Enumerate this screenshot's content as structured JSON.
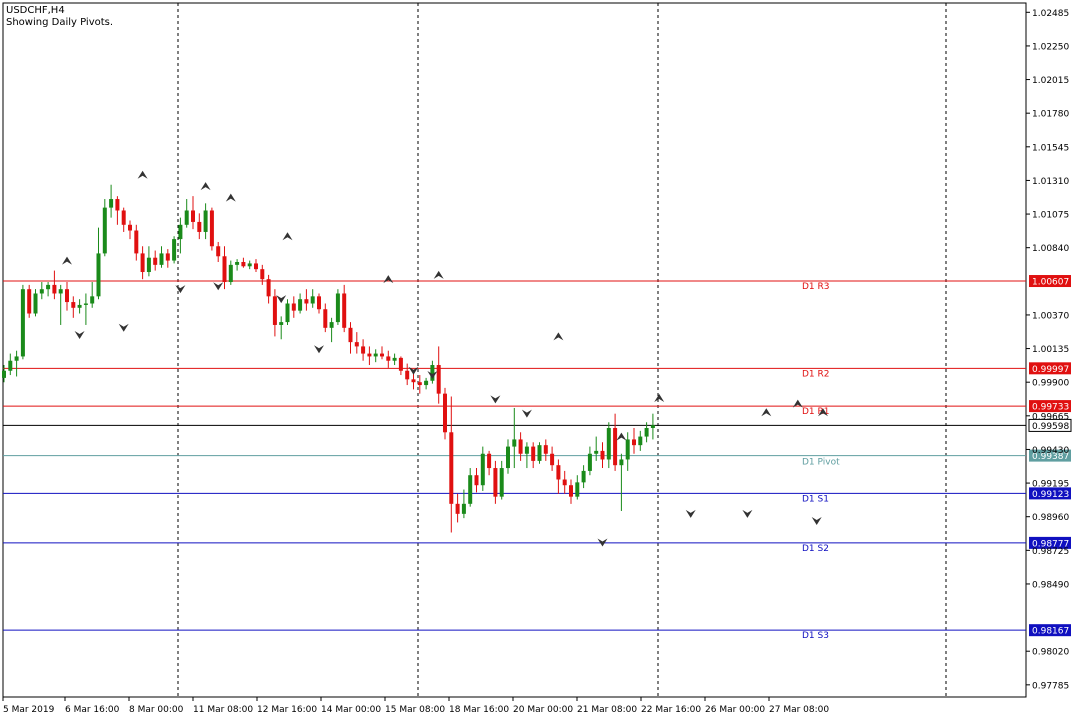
{
  "header": {
    "symbol": "USDCHF,H4",
    "subtitle": "Showing Daily Pivots."
  },
  "colors": {
    "bull": "#1a8a1a",
    "bear": "#e01010",
    "resistance": "#e01010",
    "support": "#1010c0",
    "pivot": "#5f9ea0",
    "current": "#000000",
    "grid": "#000000"
  },
  "chart_data": {
    "type": "candlestick",
    "ylim": [
      0.977,
      1.0255
    ],
    "y_ticks": [
      1.02485,
      1.0225,
      1.02015,
      1.0178,
      1.01545,
      1.0131,
      1.01075,
      1.0084,
      1.0037,
      1.00135,
      0.999,
      0.99665,
      0.9943,
      0.99195,
      0.9896,
      0.98725,
      0.9849,
      0.9802,
      0.97785
    ],
    "x_ticks": [
      "5 Mar 2019",
      "6 Mar 16:00",
      "8 Mar 00:00",
      "11 Mar 08:00",
      "12 Mar 16:00",
      "14 Mar 00:00",
      "15 Mar 08:00",
      "18 Mar 16:00",
      "20 Mar 00:00",
      "21 Mar 08:00",
      "22 Mar 16:00",
      "26 Mar 00:00",
      "27 Mar 08:00"
    ],
    "pivot_levels": [
      {
        "label": "D1 R3",
        "value": 1.00607,
        "price_label": "1.00607",
        "kind": "resistance"
      },
      {
        "label": "D1 R2",
        "value": 0.99997,
        "price_label": "0.99997",
        "kind": "resistance"
      },
      {
        "label": "D1 R1",
        "value": 0.99733,
        "price_label": "0.99733",
        "kind": "resistance"
      },
      {
        "label": "D1 Pivot",
        "value": 0.99387,
        "price_label": "0.99387",
        "kind": "pivot"
      },
      {
        "label": "D1 S1",
        "value": 0.99123,
        "price_label": "0.99123",
        "kind": "support"
      },
      {
        "label": "D1 S2",
        "value": 0.98777,
        "price_label": "0.98777",
        "kind": "support"
      },
      {
        "label": "D1 S3",
        "value": 0.98167,
        "price_label": "0.98167",
        "kind": "support"
      }
    ],
    "current_price": {
      "value": 0.99598,
      "price_label": "0.99598"
    },
    "ohlc": [
      [
        0.9993,
        1.0002,
        0.999,
        0.9998
      ],
      [
        0.9998,
        1.001,
        0.9995,
        1.0005
      ],
      [
        1.0005,
        1.0012,
        0.9994,
        1.0008
      ],
      [
        1.0008,
        1.0058,
        1.0006,
        1.0055
      ],
      [
        1.0055,
        1.0058,
        1.0035,
        1.0038
      ],
      [
        1.0038,
        1.0055,
        1.0036,
        1.0052
      ],
      [
        1.0052,
        1.006,
        1.0048,
        1.0055
      ],
      [
        1.0055,
        1.006,
        1.005,
        1.0058
      ],
      [
        1.0058,
        1.0068,
        1.0048,
        1.0052
      ],
      [
        1.0052,
        1.0058,
        1.003,
        1.0055
      ],
      [
        1.0055,
        1.006,
        1.004,
        1.0046
      ],
      [
        1.0046,
        1.005,
        1.0035,
        1.0042
      ],
      [
        1.0042,
        1.0048,
        1.0038,
        1.0044
      ],
      [
        1.0044,
        1.0052,
        1.003,
        1.0045
      ],
      [
        1.0045,
        1.006,
        1.0042,
        1.005
      ],
      [
        1.005,
        1.0098,
        1.0048,
        1.008
      ],
      [
        1.008,
        1.0118,
        1.0078,
        1.0112
      ],
      [
        1.0112,
        1.0128,
        1.0105,
        1.0118
      ],
      [
        1.0118,
        1.012,
        1.01,
        1.011
      ],
      [
        1.011,
        1.0112,
        1.0095,
        1.01
      ],
      [
        1.01,
        1.0103,
        1.009,
        1.0096
      ],
      [
        1.0096,
        1.01,
        1.0075,
        1.008
      ],
      [
        1.008,
        1.0085,
        1.0062,
        1.0067
      ],
      [
        1.0067,
        1.0085,
        1.0064,
        1.0077
      ],
      [
        1.0077,
        1.0082,
        1.0068,
        1.0072
      ],
      [
        1.0072,
        1.0085,
        1.007,
        1.008
      ],
      [
        1.008,
        1.0083,
        1.007,
        1.0075
      ],
      [
        1.0075,
        1.0092,
        1.0073,
        1.009
      ],
      [
        1.009,
        1.0105,
        1.008,
        1.01
      ],
      [
        1.01,
        1.0118,
        1.0098,
        1.011
      ],
      [
        1.011,
        1.012,
        1.0097,
        1.0102
      ],
      [
        1.0102,
        1.0108,
        1.009,
        1.0095
      ],
      [
        1.0095,
        1.0115,
        1.009,
        1.011
      ],
      [
        1.011,
        1.0112,
        1.0082,
        1.0085
      ],
      [
        1.0085,
        1.0088,
        1.0074,
        1.0078
      ],
      [
        1.0078,
        1.0085,
        1.0055,
        1.006
      ],
      [
        1.006,
        1.0075,
        1.0058,
        1.0072
      ],
      [
        1.0072,
        1.0076,
        1.0068,
        1.0074
      ],
      [
        1.0074,
        1.0077,
        1.007,
        1.0071
      ],
      [
        1.0071,
        1.0075,
        1.0069,
        1.0073
      ],
      [
        1.0073,
        1.0076,
        1.0067,
        1.0069
      ],
      [
        1.0069,
        1.0072,
        1.0058,
        1.0062
      ],
      [
        1.0062,
        1.0065,
        1.0045,
        1.005
      ],
      [
        1.005,
        1.0055,
        1.0022,
        1.003
      ],
      [
        1.003,
        1.0036,
        1.002,
        1.0032
      ],
      [
        1.0032,
        1.0048,
        1.003,
        1.0045
      ],
      [
        1.0045,
        1.005,
        1.0035,
        1.004
      ],
      [
        1.004,
        1.0052,
        1.0038,
        1.0048
      ],
      [
        1.0048,
        1.0055,
        1.004,
        1.0045
      ],
      [
        1.0045,
        1.0055,
        1.0042,
        1.005
      ],
      [
        1.005,
        1.0052,
        1.0038,
        1.0041
      ],
      [
        1.0041,
        1.0045,
        1.0025,
        1.0028
      ],
      [
        1.0028,
        1.0035,
        1.0018,
        1.0032
      ],
      [
        1.0032,
        1.0055,
        1.003,
        1.0052
      ],
      [
        1.0052,
        1.0058,
        1.0025,
        1.0028
      ],
      [
        1.0028,
        1.0032,
        1.001,
        1.0018
      ],
      [
        1.0018,
        1.0025,
        1.001,
        1.0015
      ],
      [
        1.0015,
        1.002,
        1.0005,
        1.001
      ],
      [
        1.001,
        1.0015,
        1.0002,
        1.0008
      ],
      [
        1.0008,
        1.0013,
        1.0004,
        1.001
      ],
      [
        1.001,
        1.0015,
        1.0006,
        1.0008
      ],
      [
        1.0008,
        1.0012,
        1.0,
        1.0005
      ],
      [
        1.0005,
        1.001,
        1.0002,
        1.0007
      ],
      [
        1.0007,
        1.0008,
        0.9995,
        0.9998
      ],
      [
        0.9998,
        1.0003,
        0.9988,
        0.9992
      ],
      [
        0.9992,
        0.9998,
        0.9985,
        0.999
      ],
      [
        0.999,
        0.9995,
        0.9982,
        0.9988
      ],
      [
        0.9988,
        0.9993,
        0.9985,
        0.9991
      ],
      [
        0.9991,
        1.0005,
        0.9989,
        1.0002
      ],
      [
        1.0002,
        1.0015,
        0.9975,
        0.9982
      ],
      [
        0.9982,
        0.9986,
        0.995,
        0.9955
      ],
      [
        0.9955,
        0.998,
        0.9885,
        0.9905
      ],
      [
        0.9905,
        0.9912,
        0.9892,
        0.9898
      ],
      [
        0.9898,
        0.9915,
        0.9895,
        0.9905
      ],
      [
        0.9905,
        0.993,
        0.9903,
        0.9925
      ],
      [
        0.9925,
        0.993,
        0.9913,
        0.9918
      ],
      [
        0.9918,
        0.9945,
        0.9914,
        0.994
      ],
      [
        0.994,
        0.9942,
        0.9925,
        0.993
      ],
      [
        0.993,
        0.9935,
        0.9905,
        0.991
      ],
      [
        0.991,
        0.9935,
        0.9908,
        0.993
      ],
      [
        0.993,
        0.995,
        0.9926,
        0.9945
      ],
      [
        0.9945,
        0.9972,
        0.993,
        0.995
      ],
      [
        0.995,
        0.9955,
        0.9935,
        0.994
      ],
      [
        0.994,
        0.9948,
        0.993,
        0.9945
      ],
      [
        0.9945,
        0.9948,
        0.993,
        0.9935
      ],
      [
        0.9935,
        0.9948,
        0.9933,
        0.9946
      ],
      [
        0.9946,
        0.995,
        0.9935,
        0.994
      ],
      [
        0.994,
        0.9945,
        0.9928,
        0.9932
      ],
      [
        0.9932,
        0.9936,
        0.9912,
        0.9922
      ],
      [
        0.9922,
        0.9928,
        0.9912,
        0.9918
      ],
      [
        0.9918,
        0.9922,
        0.9905,
        0.991
      ],
      [
        0.991,
        0.9925,
        0.9908,
        0.992
      ],
      [
        0.992,
        0.9932,
        0.9916,
        0.9928
      ],
      [
        0.9928,
        0.9945,
        0.9925,
        0.994
      ],
      [
        0.994,
        0.9952,
        0.9935,
        0.9942
      ],
      [
        0.9942,
        0.9948,
        0.993,
        0.9936
      ],
      [
        0.9936,
        0.9962,
        0.993,
        0.9958
      ],
      [
        0.9958,
        0.9968,
        0.9928,
        0.9932
      ],
      [
        0.9932,
        0.994,
        0.99,
        0.9936
      ],
      [
        0.9936,
        0.9955,
        0.9928,
        0.995
      ],
      [
        0.995,
        0.9958,
        0.994,
        0.9946
      ],
      [
        0.9946,
        0.9956,
        0.9942,
        0.9952
      ],
      [
        0.9952,
        0.9962,
        0.9948,
        0.9958
      ],
      [
        0.9958,
        0.9968,
        0.995,
        0.996
      ]
    ],
    "fractals_up": [
      [
        10,
        1.0068
      ],
      [
        22,
        1.0128
      ],
      [
        32,
        1.012
      ],
      [
        36,
        1.0112
      ],
      [
        45,
        1.0085
      ],
      [
        61,
        1.0055
      ],
      [
        69,
        1.0058
      ],
      [
        88,
        1.0015
      ],
      [
        98,
        0.9945
      ],
      [
        104,
        0.9972
      ],
      [
        121,
        0.9962
      ],
      [
        126,
        0.9968
      ],
      [
        130,
        0.9962
      ]
    ],
    "fractals_down": [
      [
        12,
        1.003
      ],
      [
        19,
        1.0035
      ],
      [
        28,
        1.0062
      ],
      [
        34,
        1.0064
      ],
      [
        44,
        1.0055
      ],
      [
        50,
        1.002
      ],
      [
        65,
        1.0005
      ],
      [
        68,
        1.0002
      ],
      [
        78,
        0.9985
      ],
      [
        83,
        0.9975
      ],
      [
        95,
        0.9885
      ],
      [
        109,
        0.9905
      ],
      [
        118,
        0.9905
      ],
      [
        129,
        0.99
      ]
    ],
    "series": []
  }
}
